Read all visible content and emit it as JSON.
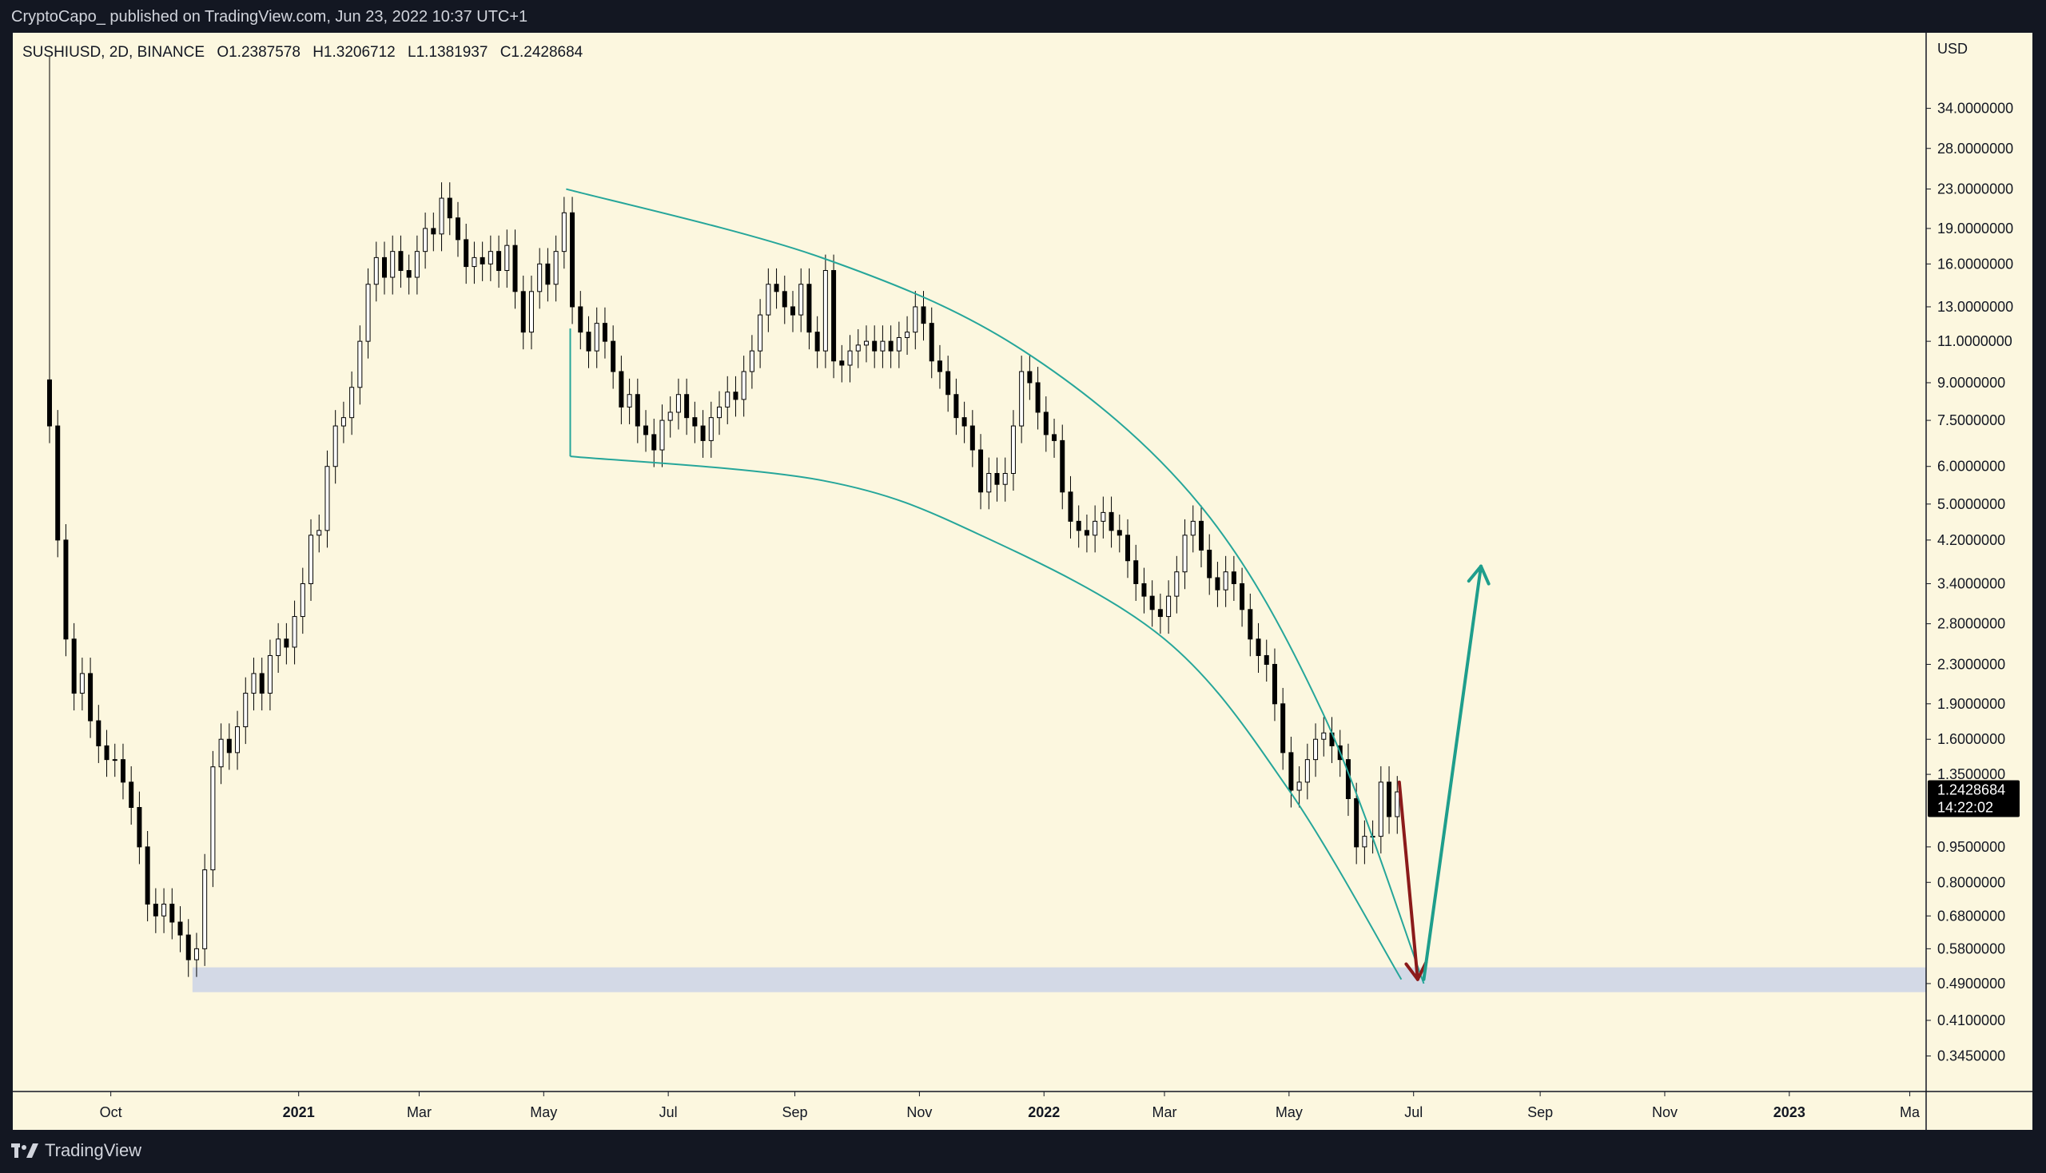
{
  "header": {
    "published_by": "CryptoCapo_ published on TradingView.com, Jun 23, 2022 10:37 UTC+1"
  },
  "legend": {
    "symbol": "SUSHIUSD, 2D, BINANCE",
    "open": "O1.2387578",
    "high": "H1.3206712",
    "low": "L1.1381937",
    "close": "C1.2428684"
  },
  "price_tag": {
    "price": "1.2428684",
    "countdown": "14:22:02",
    "value": 1.2428684
  },
  "footer": {
    "brand": "TradingView"
  },
  "colors": {
    "background": "#fcf7df",
    "page": "#131722",
    "candle": "#000000",
    "channel": "#26a69a",
    "down_arrow": "#8b1a1a",
    "up_arrow": "#1e9e8c",
    "support_zone": "#d3d9e6"
  },
  "icons": {
    "brand_logo": "tradingview-logo-icon"
  },
  "chart_data": {
    "type": "candlestick",
    "scale": "log",
    "y_axis_unit": "USD",
    "y_ticks": [
      "34.0000000",
      "28.0000000",
      "23.0000000",
      "19.0000000",
      "16.0000000",
      "13.0000000",
      "11.0000000",
      "9.0000000",
      "7.5000000",
      "6.0000000",
      "5.0000000",
      "4.2000000",
      "3.4000000",
      "2.8000000",
      "2.3000000",
      "1.9000000",
      "1.6000000",
      "1.3500000",
      "0.9500000",
      "0.8000000",
      "0.6800000",
      "0.5800000",
      "0.4900000",
      "0.4100000",
      "0.3450000"
    ],
    "ylim": [
      0.32,
      42
    ],
    "x_ticks": [
      {
        "label": "Oct",
        "date": "2020-10-01",
        "bold": false
      },
      {
        "label": "2021",
        "date": "2021-01-01",
        "bold": true
      },
      {
        "label": "Mar",
        "date": "2021-03-01",
        "bold": false
      },
      {
        "label": "May",
        "date": "2021-05-01",
        "bold": false
      },
      {
        "label": "Jul",
        "date": "2021-07-01",
        "bold": false
      },
      {
        "label": "Sep",
        "date": "2021-09-01",
        "bold": false
      },
      {
        "label": "Nov",
        "date": "2021-11-01",
        "bold": false
      },
      {
        "label": "2022",
        "date": "2022-01-01",
        "bold": true
      },
      {
        "label": "Mar",
        "date": "2022-03-01",
        "bold": false
      },
      {
        "label": "May",
        "date": "2022-05-01",
        "bold": false
      },
      {
        "label": "Jul",
        "date": "2022-07-01",
        "bold": false
      },
      {
        "label": "Sep",
        "date": "2022-09-01",
        "bold": false
      },
      {
        "label": "Nov",
        "date": "2022-11-01",
        "bold": false
      },
      {
        "label": "2023",
        "date": "2023-01-01",
        "bold": true
      },
      {
        "label": "Ma",
        "date": "2023-03-01",
        "bold": false
      }
    ],
    "xlim": [
      "2020-08-14",
      "2023-03-09"
    ],
    "series": [
      {
        "date": "2020-09-01",
        "close": 7.3
      },
      {
        "date": "2020-09-05",
        "close": 4.2
      },
      {
        "date": "2020-09-09",
        "close": 2.6
      },
      {
        "date": "2020-09-13",
        "close": 2.0
      },
      {
        "date": "2020-09-17",
        "close": 2.2
      },
      {
        "date": "2020-09-21",
        "close": 1.75
      },
      {
        "date": "2020-09-25",
        "close": 1.55
      },
      {
        "date": "2020-09-29",
        "close": 1.45
      },
      {
        "date": "2020-10-03",
        "close": 1.45
      },
      {
        "date": "2020-10-07",
        "close": 1.3
      },
      {
        "date": "2020-10-11",
        "close": 1.15
      },
      {
        "date": "2020-10-15",
        "close": 0.95
      },
      {
        "date": "2020-10-19",
        "close": 0.72
      },
      {
        "date": "2020-10-23",
        "close": 0.68
      },
      {
        "date": "2020-10-27",
        "close": 0.72
      },
      {
        "date": "2020-10-31",
        "close": 0.66
      },
      {
        "date": "2020-11-04",
        "close": 0.62
      },
      {
        "date": "2020-11-08",
        "close": 0.55
      },
      {
        "date": "2020-11-12",
        "close": 0.58
      },
      {
        "date": "2020-11-16",
        "close": 0.85
      },
      {
        "date": "2020-11-20",
        "close": 1.4
      },
      {
        "date": "2020-11-24",
        "close": 1.6
      },
      {
        "date": "2020-11-28",
        "close": 1.5
      },
      {
        "date": "2020-12-02",
        "close": 1.7
      },
      {
        "date": "2020-12-06",
        "close": 2.0
      },
      {
        "date": "2020-12-10",
        "close": 2.2
      },
      {
        "date": "2020-12-14",
        "close": 2.0
      },
      {
        "date": "2020-12-18",
        "close": 2.4
      },
      {
        "date": "2020-12-22",
        "close": 2.6
      },
      {
        "date": "2020-12-26",
        "close": 2.5
      },
      {
        "date": "2020-12-30",
        "close": 2.9
      },
      {
        "date": "2021-01-03",
        "close": 3.4
      },
      {
        "date": "2021-01-07",
        "close": 4.3
      },
      {
        "date": "2021-01-11",
        "close": 4.4
      },
      {
        "date": "2021-01-15",
        "close": 6.0
      },
      {
        "date": "2021-01-19",
        "close": 7.3
      },
      {
        "date": "2021-01-23",
        "close": 7.6
      },
      {
        "date": "2021-01-27",
        "close": 8.8
      },
      {
        "date": "2021-01-31",
        "close": 11.0
      },
      {
        "date": "2021-02-04",
        "close": 14.5
      },
      {
        "date": "2021-02-08",
        "close": 16.5
      },
      {
        "date": "2021-02-12",
        "close": 15.0
      },
      {
        "date": "2021-02-16",
        "close": 17.0
      },
      {
        "date": "2021-02-20",
        "close": 15.5
      },
      {
        "date": "2021-02-24",
        "close": 15.0
      },
      {
        "date": "2021-02-28",
        "close": 17.0
      },
      {
        "date": "2021-03-04",
        "close": 19.0
      },
      {
        "date": "2021-03-08",
        "close": 18.5
      },
      {
        "date": "2021-03-12",
        "close": 22.0
      },
      {
        "date": "2021-03-16",
        "close": 20.0
      },
      {
        "date": "2021-03-20",
        "close": 18.0
      },
      {
        "date": "2021-03-24",
        "close": 15.8
      },
      {
        "date": "2021-03-28",
        "close": 16.5
      },
      {
        "date": "2021-04-01",
        "close": 16.0
      },
      {
        "date": "2021-04-05",
        "close": 17.0
      },
      {
        "date": "2021-04-09",
        "close": 15.5
      },
      {
        "date": "2021-04-13",
        "close": 17.5
      },
      {
        "date": "2021-04-17",
        "close": 14.0
      },
      {
        "date": "2021-04-21",
        "close": 11.5
      },
      {
        "date": "2021-04-25",
        "close": 14.0
      },
      {
        "date": "2021-04-29",
        "close": 16.0
      },
      {
        "date": "2021-05-03",
        "close": 14.5
      },
      {
        "date": "2021-05-07",
        "close": 17.0
      },
      {
        "date": "2021-05-11",
        "close": 20.5
      },
      {
        "date": "2021-05-15",
        "close": 13.0
      },
      {
        "date": "2021-05-19",
        "close": 11.5
      },
      {
        "date": "2021-05-23",
        "close": 10.5
      },
      {
        "date": "2021-05-27",
        "close": 12.0
      },
      {
        "date": "2021-05-31",
        "close": 11.0
      },
      {
        "date": "2021-06-04",
        "close": 9.5
      },
      {
        "date": "2021-06-08",
        "close": 8.0
      },
      {
        "date": "2021-06-12",
        "close": 8.5
      },
      {
        "date": "2021-06-16",
        "close": 7.3
      },
      {
        "date": "2021-06-20",
        "close": 7.0
      },
      {
        "date": "2021-06-24",
        "close": 6.5
      },
      {
        "date": "2021-06-28",
        "close": 7.5
      },
      {
        "date": "2021-07-02",
        "close": 7.8
      },
      {
        "date": "2021-07-06",
        "close": 8.5
      },
      {
        "date": "2021-07-10",
        "close": 7.6
      },
      {
        "date": "2021-07-14",
        "close": 7.3
      },
      {
        "date": "2021-07-18",
        "close": 6.8
      },
      {
        "date": "2021-07-22",
        "close": 7.6
      },
      {
        "date": "2021-07-26",
        "close": 8.0
      },
      {
        "date": "2021-07-30",
        "close": 8.6
      },
      {
        "date": "2021-08-03",
        "close": 8.3
      },
      {
        "date": "2021-08-07",
        "close": 9.5
      },
      {
        "date": "2021-08-11",
        "close": 10.5
      },
      {
        "date": "2021-08-15",
        "close": 12.5
      },
      {
        "date": "2021-08-19",
        "close": 14.5
      },
      {
        "date": "2021-08-23",
        "close": 14.0
      },
      {
        "date": "2021-08-27",
        "close": 13.0
      },
      {
        "date": "2021-08-31",
        "close": 12.5
      },
      {
        "date": "2021-09-04",
        "close": 14.5
      },
      {
        "date": "2021-09-08",
        "close": 11.5
      },
      {
        "date": "2021-09-12",
        "close": 10.5
      },
      {
        "date": "2021-09-16",
        "close": 15.5
      },
      {
        "date": "2021-09-20",
        "close": 10.0
      },
      {
        "date": "2021-09-24",
        "close": 9.8
      },
      {
        "date": "2021-09-28",
        "close": 10.5
      },
      {
        "date": "2021-10-02",
        "close": 10.8
      },
      {
        "date": "2021-10-06",
        "close": 11.0
      },
      {
        "date": "2021-10-10",
        "close": 10.5
      },
      {
        "date": "2021-10-14",
        "close": 11.0
      },
      {
        "date": "2021-10-18",
        "close": 10.5
      },
      {
        "date": "2021-10-22",
        "close": 11.2
      },
      {
        "date": "2021-10-26",
        "close": 11.5
      },
      {
        "date": "2021-10-30",
        "close": 13.0
      },
      {
        "date": "2021-11-03",
        "close": 12.0
      },
      {
        "date": "2021-11-07",
        "close": 10.0
      },
      {
        "date": "2021-11-11",
        "close": 9.5
      },
      {
        "date": "2021-11-15",
        "close": 8.5
      },
      {
        "date": "2021-11-19",
        "close": 7.6
      },
      {
        "date": "2021-11-23",
        "close": 7.3
      },
      {
        "date": "2021-11-27",
        "close": 6.5
      },
      {
        "date": "2021-12-01",
        "close": 5.3
      },
      {
        "date": "2021-12-05",
        "close": 5.8
      },
      {
        "date": "2021-12-09",
        "close": 5.5
      },
      {
        "date": "2021-12-13",
        "close": 5.8
      },
      {
        "date": "2021-12-17",
        "close": 7.3
      },
      {
        "date": "2021-12-21",
        "close": 9.5
      },
      {
        "date": "2021-12-25",
        "close": 9.0
      },
      {
        "date": "2021-12-29",
        "close": 7.8
      },
      {
        "date": "2022-01-02",
        "close": 7.0
      },
      {
        "date": "2022-01-06",
        "close": 6.8
      },
      {
        "date": "2022-01-10",
        "close": 5.3
      },
      {
        "date": "2022-01-14",
        "close": 4.6
      },
      {
        "date": "2022-01-18",
        "close": 4.4
      },
      {
        "date": "2022-01-22",
        "close": 4.3
      },
      {
        "date": "2022-01-26",
        "close": 4.6
      },
      {
        "date": "2022-01-30",
        "close": 4.8
      },
      {
        "date": "2022-02-03",
        "close": 4.4
      },
      {
        "date": "2022-02-07",
        "close": 4.3
      },
      {
        "date": "2022-02-11",
        "close": 3.8
      },
      {
        "date": "2022-02-15",
        "close": 3.4
      },
      {
        "date": "2022-02-19",
        "close": 3.2
      },
      {
        "date": "2022-02-23",
        "close": 3.0
      },
      {
        "date": "2022-02-27",
        "close": 2.9
      },
      {
        "date": "2022-03-03",
        "close": 3.2
      },
      {
        "date": "2022-03-07",
        "close": 3.6
      },
      {
        "date": "2022-03-11",
        "close": 4.3
      },
      {
        "date": "2022-03-15",
        "close": 4.6
      },
      {
        "date": "2022-03-19",
        "close": 4.0
      },
      {
        "date": "2022-03-23",
        "close": 3.5
      },
      {
        "date": "2022-03-27",
        "close": 3.3
      },
      {
        "date": "2022-03-31",
        "close": 3.6
      },
      {
        "date": "2022-04-04",
        "close": 3.4
      },
      {
        "date": "2022-04-08",
        "close": 3.0
      },
      {
        "date": "2022-04-12",
        "close": 2.6
      },
      {
        "date": "2022-04-16",
        "close": 2.4
      },
      {
        "date": "2022-04-20",
        "close": 2.3
      },
      {
        "date": "2022-04-24",
        "close": 1.9
      },
      {
        "date": "2022-04-28",
        "close": 1.5
      },
      {
        "date": "2022-05-02",
        "close": 1.25
      },
      {
        "date": "2022-05-06",
        "close": 1.3
      },
      {
        "date": "2022-05-10",
        "close": 1.45
      },
      {
        "date": "2022-05-14",
        "close": 1.6
      },
      {
        "date": "2022-05-18",
        "close": 1.65
      },
      {
        "date": "2022-05-22",
        "close": 1.55
      },
      {
        "date": "2022-05-26",
        "close": 1.45
      },
      {
        "date": "2022-05-30",
        "close": 1.2
      },
      {
        "date": "2022-06-03",
        "close": 0.95
      },
      {
        "date": "2022-06-07",
        "close": 1.0
      },
      {
        "date": "2022-06-11",
        "close": 1.0
      },
      {
        "date": "2022-06-15",
        "close": 1.3
      },
      {
        "date": "2022-06-19",
        "close": 1.1
      },
      {
        "date": "2022-06-23",
        "close": 1.24
      }
    ],
    "annotations": {
      "support_zone": {
        "from": 0.47,
        "to": 0.53,
        "start": "2020-11-10"
      },
      "upper_arc": [
        [
          "2021-05-12",
          23.0
        ],
        [
          "2021-09-14",
          16.5
        ],
        [
          "2021-12-22",
          10.5
        ],
        [
          "2022-03-18",
          5.0
        ],
        [
          "2022-05-18",
          1.8
        ],
        [
          "2022-07-06",
          0.49
        ]
      ],
      "lower_arc": [
        [
          "2021-05-14",
          6.3
        ],
        [
          "2021-09-15",
          5.6
        ],
        [
          "2021-12-01",
          4.3
        ],
        [
          "2022-03-01",
          2.6
        ],
        [
          "2022-05-01",
          1.25
        ],
        [
          "2022-06-25",
          0.5
        ]
      ],
      "down_arrow": {
        "from": [
          "2022-06-24",
          1.3
        ],
        "to": [
          "2022-07-03",
          0.5
        ]
      },
      "up_arrow": {
        "from": [
          "2022-07-06",
          0.5
        ],
        "to": [
          "2022-08-03",
          3.7
        ]
      }
    }
  }
}
